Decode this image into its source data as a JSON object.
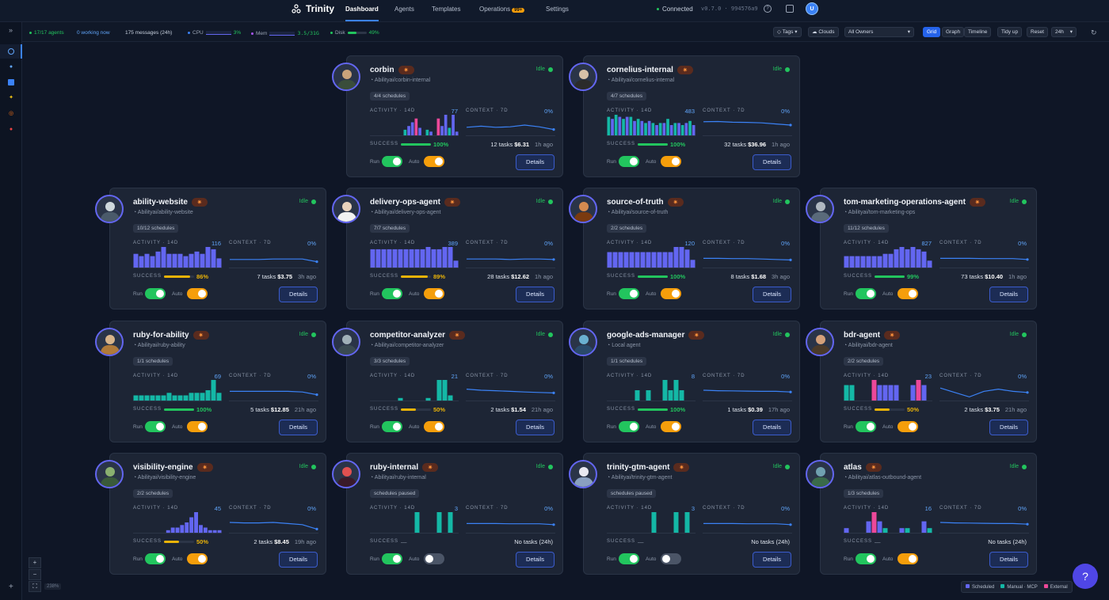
{
  "app": {
    "title": "Trinity"
  },
  "nav": {
    "tabs": [
      "Dashboard",
      "Agents",
      "Templates",
      "Operations",
      "Settings"
    ],
    "operations_badge": "99+",
    "active": "Dashboard"
  },
  "status": {
    "connection": "Connected",
    "version": "v0.7.0 · 994576a9",
    "user_initial": "U"
  },
  "stats": {
    "agents": "17/17 agents",
    "working": "0 working now",
    "messages": "175 messages (24h)",
    "cpu_label": "CPU",
    "cpu_value": "3%",
    "mem_label": "Mem",
    "mem_value": "3.5/31G",
    "disk_label": "Disk",
    "disk_value": "49%"
  },
  "toolbar": {
    "tags": "Tags",
    "clouds": "Clouds",
    "owner_select": "All Owners",
    "views": [
      "Grid",
      "Graph",
      "Timeline"
    ],
    "active_view": "Grid",
    "tidy": "Tidy up",
    "reset": "Reset",
    "range": "24h"
  },
  "zoom": {
    "plus": "+",
    "minus": "−",
    "fit": "⛶",
    "level": "238%"
  },
  "legend": {
    "items": [
      {
        "label": "Scheduled",
        "color": "#6366f1"
      },
      {
        "label": "Manual · MCP",
        "color": "#14b8a6"
      },
      {
        "label": "External",
        "color": "#ec4899"
      }
    ]
  },
  "labels": {
    "activity": "ACTIVITY · 14D",
    "context": "CONTEXT · 7D",
    "success": "SUCCESS",
    "run": "Run",
    "auto": "Auto",
    "details": "Details",
    "idle": "Idle"
  },
  "colors": {
    "accent": "#3b82f6",
    "green": "#22c55e",
    "yellow": "#eab308",
    "orange": "#f59e0b"
  },
  "agents": [
    {
      "name": "corbin",
      "repo": "Abilityai/corbin-internal",
      "schedules": "4/4 schedules",
      "activity": "77",
      "context": "0%",
      "success": "100%",
      "success_frac": 1.0,
      "tasks": "12 tasks",
      "cost": "$6.31",
      "ago": "1h ago",
      "run": true,
      "auto": true,
      "bars": [
        0,
        0,
        0,
        0,
        0,
        0,
        0,
        0,
        0,
        3,
        5,
        7,
        9,
        4,
        0,
        3,
        2,
        0,
        9,
        5,
        11,
        4,
        11,
        2
      ],
      "barcolors": "mixed",
      "ctx": [
        0.4,
        0.45,
        0.4,
        0.42,
        0.5,
        0.42,
        0.3
      ]
    },
    {
      "name": "cornelius-internal",
      "repo": "Abilityai/cornelius-internal",
      "schedules": "4/7 schedules",
      "activity": "483",
      "context": "0%",
      "success": "100%",
      "success_frac": 1.0,
      "tasks": "32 tasks",
      "cost": "$36.96",
      "ago": "1h ago",
      "run": true,
      "auto": true,
      "bars": [
        9,
        8,
        10,
        9,
        8,
        9,
        9,
        7,
        8,
        7,
        6,
        7,
        6,
        5,
        6,
        6,
        8,
        5,
        6,
        6,
        5,
        6,
        7,
        5
      ],
      "barcolors": "mixed2",
      "ctx": [
        0.65,
        0.66,
        0.63,
        0.62,
        0.6,
        0.55,
        0.5
      ]
    },
    {
      "name": "ability-website",
      "repo": "Abilityai/ability-website",
      "schedules": "10/12 schedules",
      "activity": "116",
      "context": "0%",
      "success": "86%",
      "success_frac": 0.86,
      "tasks": "7 tasks",
      "cost": "$3.75",
      "ago": "3h ago",
      "run": true,
      "auto": true,
      "bars": [
        6,
        5,
        6,
        5,
        7,
        9,
        6,
        6,
        6,
        5,
        6,
        7,
        6,
        9,
        8,
        4
      ],
      "barcolors": "indigo",
      "ctx": [
        0.4,
        0.4,
        0.4,
        0.42,
        0.42,
        0.42,
        0.3
      ]
    },
    {
      "name": "delivery-ops-agent",
      "repo": "Abilityai/delivery-ops-agent",
      "schedules": "7/7 schedules",
      "activity": "389",
      "context": "0%",
      "success": "89%",
      "success_frac": 0.89,
      "tasks": "28 tasks",
      "cost": "$12.62",
      "ago": "1h ago",
      "run": true,
      "auto": true,
      "bars": [
        8,
        8,
        8,
        8,
        8,
        8,
        8,
        8,
        8,
        8,
        9,
        8,
        8,
        9,
        9,
        3
      ],
      "barcolors": "indigo",
      "ctx": [
        0.42,
        0.42,
        0.42,
        0.4,
        0.42,
        0.42,
        0.4
      ]
    },
    {
      "name": "source-of-truth",
      "repo": "Abilityai/source-of-truth",
      "schedules": "2/2 schedules",
      "activity": "120",
      "context": "0%",
      "success": "100%",
      "success_frac": 1.0,
      "tasks": "8 tasks",
      "cost": "$1.68",
      "ago": "3h ago",
      "run": true,
      "auto": true,
      "bars": [
        6,
        6,
        6,
        6,
        6,
        6,
        6,
        6,
        6,
        6,
        6,
        6,
        8,
        8,
        7,
        3
      ],
      "barcolors": "indigo",
      "ctx": [
        0.45,
        0.45,
        0.44,
        0.44,
        0.42,
        0.4,
        0.38
      ]
    },
    {
      "name": "tom-marketing-operations-agent",
      "repo": "Abilityai/tom-marketing-ops",
      "schedules": "11/12 schedules",
      "activity": "827",
      "context": "0%",
      "success": "99%",
      "success_frac": 0.99,
      "tasks": "73 tasks",
      "cost": "$10.40",
      "ago": "1h ago",
      "run": true,
      "auto": true,
      "bars": [
        5,
        5,
        5,
        5,
        5,
        5,
        5,
        6,
        6,
        8,
        9,
        8,
        9,
        8,
        7,
        3
      ],
      "barcolors": "indigo",
      "ctx": [
        0.45,
        0.45,
        0.45,
        0.44,
        0.44,
        0.44,
        0.4
      ]
    },
    {
      "name": "ruby-for-ability",
      "repo": "Abilityai/ruby-ability",
      "schedules": "1/1 schedules",
      "activity": "69",
      "context": "0%",
      "success": "100%",
      "success_frac": 1.0,
      "tasks": "5 tasks",
      "cost": "$12.85",
      "ago": "21h ago",
      "run": true,
      "auto": true,
      "bars": [
        2,
        2,
        2,
        2,
        2,
        2,
        3,
        2,
        2,
        2,
        3,
        3,
        3,
        4,
        8,
        3
      ],
      "barcolors": "teal",
      "ctx": [
        0.45,
        0.45,
        0.45,
        0.45,
        0.45,
        0.42,
        0.3
      ]
    },
    {
      "name": "competitor-analyzer",
      "repo": "Abilityai/competitor-analyzer",
      "schedules": "3/3 schedules",
      "activity": "21",
      "context": "0%",
      "success": "50%",
      "success_frac": 0.5,
      "tasks": "2 tasks",
      "cost": "$1.54",
      "ago": "21h ago",
      "run": true,
      "auto": true,
      "bars": [
        0,
        0,
        0,
        0,
        0,
        1,
        0,
        0,
        0,
        0,
        1,
        0,
        8,
        8,
        2,
        0
      ],
      "barcolors": "teal",
      "ctx": [
        0.55,
        0.5,
        0.48,
        0.45,
        0.42,
        0.4,
        0.38
      ]
    },
    {
      "name": "google-ads-manager",
      "repo": "Local agent",
      "schedules": "1/1 schedules",
      "activity": "8",
      "context": "0%",
      "success": "100%",
      "success_frac": 1.0,
      "tasks": "1 tasks",
      "cost": "$0.39",
      "ago": "17h ago",
      "run": true,
      "auto": true,
      "bars": [
        0,
        0,
        0,
        0,
        0,
        4,
        0,
        4,
        0,
        0,
        8,
        4,
        8,
        4,
        0,
        0
      ],
      "barcolors": "teal",
      "ctx": [
        0.5,
        0.48,
        0.47,
        0.46,
        0.45,
        0.45,
        0.42
      ]
    },
    {
      "name": "bdr-agent",
      "repo": "Abilityai/bdr-agent",
      "schedules": "2/2 schedules",
      "activity": "23",
      "context": "0%",
      "success": "50%",
      "success_frac": 0.5,
      "tasks": "2 tasks",
      "cost": "$3.75",
      "ago": "21h ago",
      "run": true,
      "auto": true,
      "bars": [
        6,
        6,
        0,
        0,
        0,
        8,
        6,
        6,
        6,
        6,
        0,
        0,
        6,
        8,
        6,
        0
      ],
      "barcolors": "mixed3",
      "ctx": [
        0.6,
        0.4,
        0.2,
        0.45,
        0.55,
        0.45,
        0.4
      ]
    },
    {
      "name": "visibility-engine",
      "repo": "Abilityai/visibility-engine",
      "schedules": "2/2 schedules",
      "activity": "45",
      "context": "0%",
      "success": "50%",
      "success_frac": 0.5,
      "tasks": "2 tasks",
      "cost": "$8.45",
      "ago": "19h ago",
      "run": true,
      "auto": true,
      "bars": [
        0,
        0,
        0,
        0,
        0,
        0,
        0,
        1,
        2,
        2,
        3,
        4,
        6,
        8,
        3,
        2,
        1,
        1,
        1
      ],
      "barcolors": "indigo",
      "ctx": [
        0.5,
        0.48,
        0.48,
        0.5,
        0.45,
        0.4,
        0.2
      ]
    },
    {
      "name": "ruby-internal",
      "repo": "Abilityai/ruby-internal",
      "schedules": "schedules paused",
      "activity": "3",
      "context": "0%",
      "success": "—",
      "success_frac": 0,
      "tasks": "No tasks (24h)",
      "cost": "",
      "ago": "",
      "run": true,
      "auto": false,
      "bars": [
        0,
        0,
        0,
        0,
        0,
        0,
        0,
        0,
        8,
        0,
        0,
        0,
        8,
        0,
        8,
        0
      ],
      "barcolors": "teal",
      "ctx": [
        0.45,
        0.45,
        0.45,
        0.44,
        0.44,
        0.44,
        0.4
      ]
    },
    {
      "name": "trinity-gtm-agent",
      "repo": "Abilityai/trinity-gtm-agent",
      "schedules": "schedules paused",
      "activity": "3",
      "context": "0%",
      "success": "—",
      "success_frac": 0,
      "tasks": "No tasks (24h)",
      "cost": "",
      "ago": "",
      "run": true,
      "auto": false,
      "bars": [
        0,
        0,
        0,
        0,
        0,
        0,
        0,
        0,
        8,
        0,
        0,
        0,
        8,
        0,
        8,
        0
      ],
      "barcolors": "teal",
      "ctx": [
        0.45,
        0.45,
        0.45,
        0.44,
        0.44,
        0.44,
        0.4
      ]
    },
    {
      "name": "atlas",
      "repo": "Abilityai/atlas-outbound-agent",
      "schedules": "1/3 schedules",
      "activity": "16",
      "context": "0%",
      "success": "—",
      "success_frac": 0,
      "tasks": "No tasks (24h)",
      "cost": "",
      "ago": "",
      "run": true,
      "auto": true,
      "bars": [
        2,
        0,
        0,
        0,
        5,
        9,
        5,
        2,
        0,
        0,
        2,
        2,
        0,
        0,
        5,
        2
      ],
      "barcolors": "mixed4",
      "ctx": [
        0.5,
        0.48,
        0.47,
        0.46,
        0.45,
        0.45,
        0.42
      ]
    }
  ]
}
